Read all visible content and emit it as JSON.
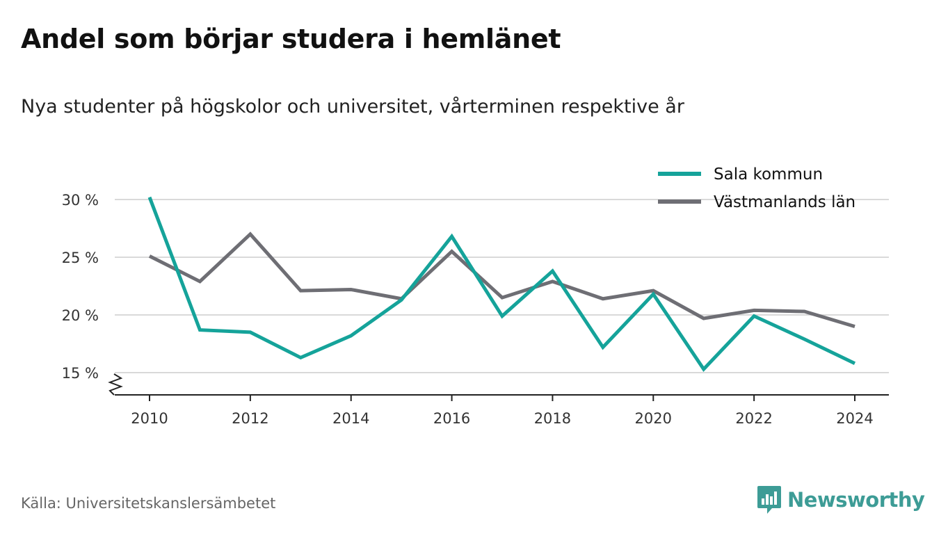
{
  "title": "Andel som börjar studera i hemlänet",
  "subtitle": "Nya studenter på högskolor och universitet, vårterminen respektive år",
  "source": "Källa: Universitetskanslersämbetet",
  "brand": {
    "name": "Newsworthy",
    "icon": "bar-chart-badge-icon",
    "color": "#3d9c96"
  },
  "chart_data": {
    "type": "line",
    "title": "Andel som börjar studera i hemlänet",
    "subtitle": "Nya studenter på högskolor och universitet, vårterminen respektive år",
    "x": [
      2010,
      2011,
      2012,
      2013,
      2014,
      2015,
      2016,
      2017,
      2018,
      2019,
      2020,
      2021,
      2022,
      2023,
      2024
    ],
    "x_ticks": [
      "2010",
      "2012",
      "2014",
      "2016",
      "2018",
      "2020",
      "2022",
      "2024"
    ],
    "y_ticks": [
      "15 %",
      "20 %",
      "25 %",
      "30 %"
    ],
    "y_tick_values": [
      15,
      20,
      25,
      30
    ],
    "ylim": [
      13,
      31
    ],
    "y_axis_break": true,
    "grid": "horizontal",
    "legend_position": "top-right",
    "series": [
      {
        "name": "Sala kommun",
        "color": "#15a39a",
        "values": [
          30.2,
          18.7,
          18.5,
          16.3,
          18.2,
          21.3,
          26.8,
          19.9,
          23.8,
          17.2,
          21.8,
          15.3,
          19.9,
          17.9,
          15.8
        ]
      },
      {
        "name": "Västmanlands län",
        "color": "#6e6e74",
        "values": [
          25.1,
          22.9,
          27.0,
          22.1,
          22.2,
          21.4,
          25.5,
          21.5,
          22.9,
          21.4,
          22.1,
          19.7,
          20.4,
          20.3,
          19.0
        ]
      }
    ]
  }
}
